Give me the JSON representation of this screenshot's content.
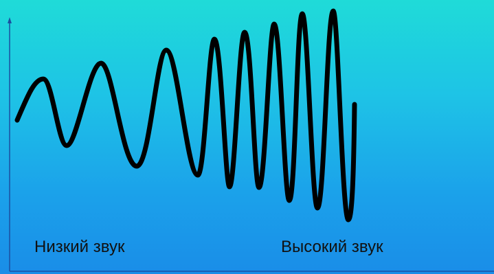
{
  "labels": {
    "low_sound": "Низкий звук",
    "high_sound": "Высокий звук"
  },
  "colors": {
    "background_top": "#1fdbd8",
    "background_bottom": "#1a8de8",
    "wave": "#000000",
    "axis": "#1c4fa0"
  }
}
